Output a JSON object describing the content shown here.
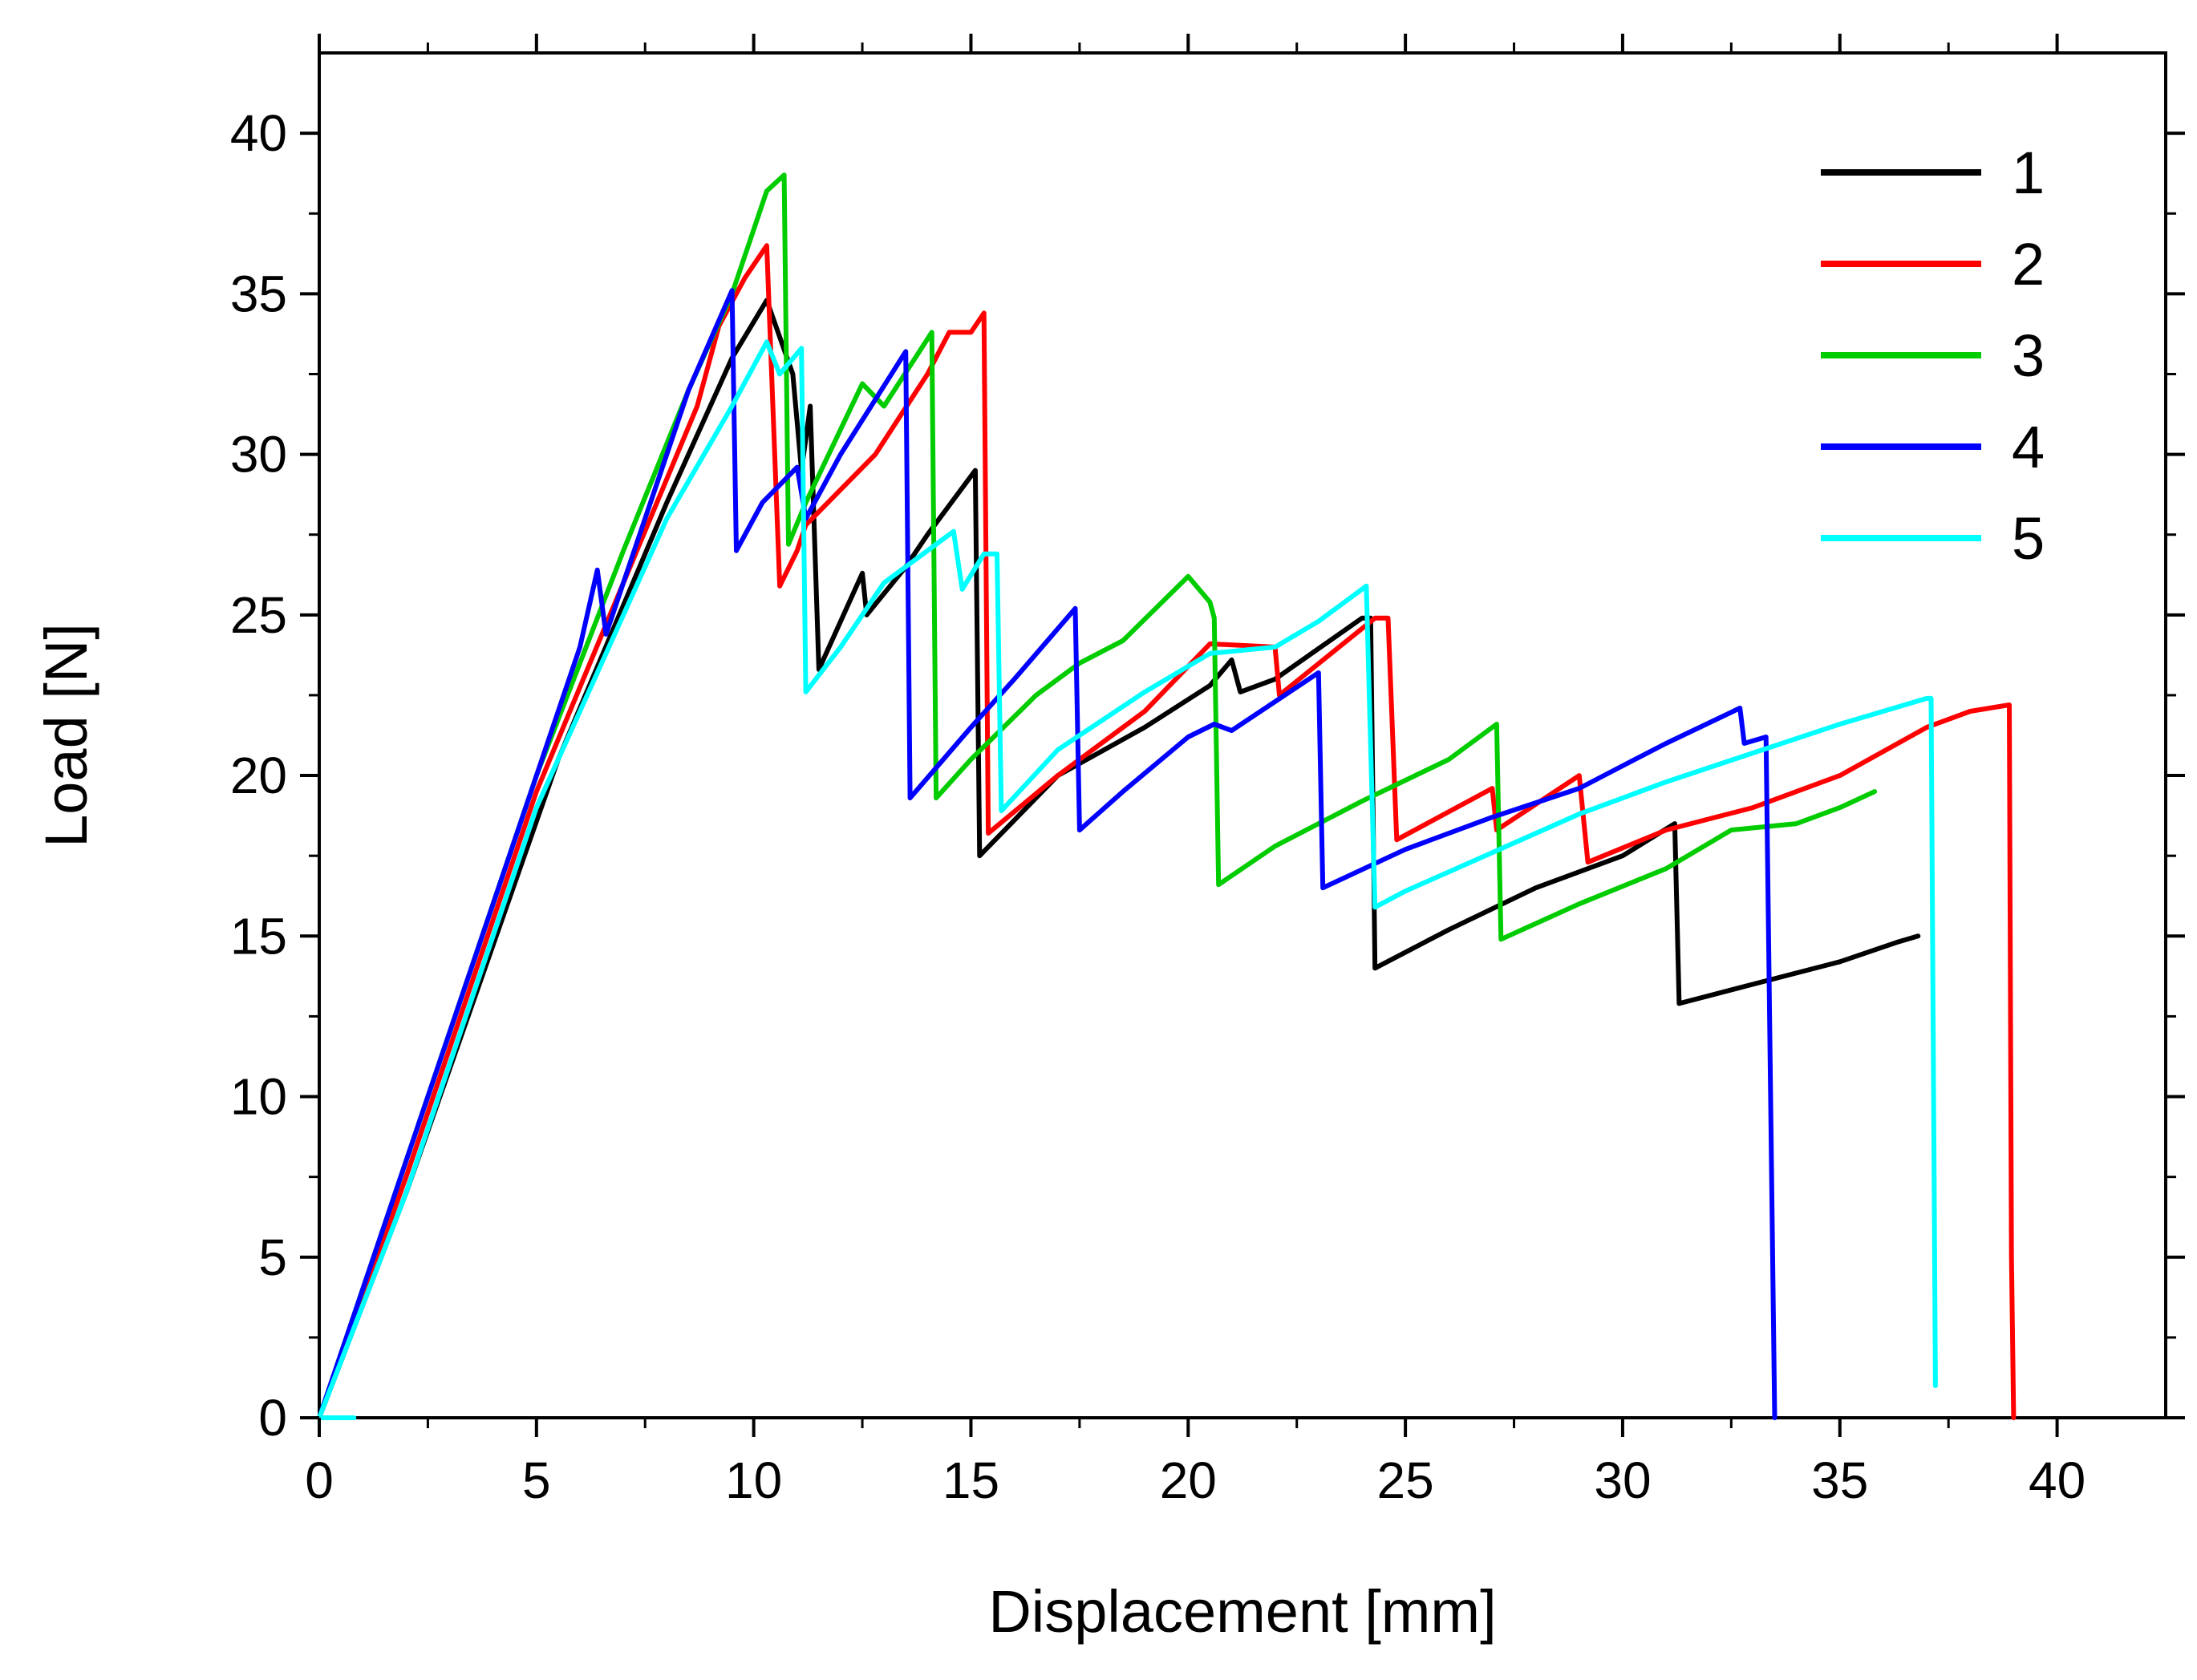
{
  "chart_data": {
    "type": "line",
    "title": "",
    "xlabel": "Displacement [mm]",
    "ylabel": "Load [N]",
    "xlim": [
      0,
      42.5
    ],
    "ylim": [
      0,
      42.5
    ],
    "x_ticks": [
      0,
      5,
      10,
      15,
      20,
      25,
      30,
      35,
      40
    ],
    "y_ticks": [
      0,
      5,
      10,
      15,
      20,
      25,
      30,
      35,
      40
    ],
    "x_tick_labels": [
      "0",
      "5",
      "10",
      "15",
      "20",
      "25",
      "30",
      "35",
      "40"
    ],
    "y_tick_labels": [
      "0",
      "5",
      "10",
      "15",
      "20",
      "25",
      "30",
      "35",
      "40"
    ],
    "grid": false,
    "legend_position": "top-right",
    "series": [
      {
        "name": "1",
        "color": "#000000",
        "points": [
          [
            0,
            0
          ],
          [
            2,
            7
          ],
          [
            5.5,
            20.5
          ],
          [
            8,
            28.5
          ],
          [
            9.5,
            33
          ],
          [
            10.3,
            34.8
          ],
          [
            10.9,
            32.5
          ],
          [
            11.1,
            29.5
          ],
          [
            11.3,
            31.5
          ],
          [
            11.5,
            23.3
          ],
          [
            12.5,
            26.3
          ],
          [
            12.6,
            25
          ],
          [
            13.5,
            26.5
          ],
          [
            14,
            27.5
          ],
          [
            15.1,
            29.5
          ],
          [
            15.2,
            17.5
          ],
          [
            17,
            20
          ],
          [
            19,
            21.5
          ],
          [
            20.5,
            22.8
          ],
          [
            21,
            23.6
          ],
          [
            21.2,
            22.6
          ],
          [
            22,
            23
          ],
          [
            24,
            24.9
          ],
          [
            24.2,
            24.9
          ],
          [
            24.3,
            14
          ],
          [
            26,
            15.2
          ],
          [
            28,
            16.5
          ],
          [
            30,
            17.5
          ],
          [
            31.2,
            18.5
          ],
          [
            31.3,
            12.9
          ],
          [
            33,
            13.5
          ],
          [
            35,
            14.2
          ],
          [
            36.3,
            14.8
          ],
          [
            36.8,
            15
          ]
        ]
      },
      {
        "name": "2",
        "color": "#ff0000",
        "points": [
          [
            0,
            0
          ],
          [
            2,
            7.5
          ],
          [
            5,
            19.5
          ],
          [
            7,
            26
          ],
          [
            8.7,
            31.5
          ],
          [
            9.2,
            34
          ],
          [
            9.8,
            35.5
          ],
          [
            10.3,
            36.5
          ],
          [
            10.6,
            25.9
          ],
          [
            11,
            27
          ],
          [
            11.2,
            27.8
          ],
          [
            12.8,
            30
          ],
          [
            14,
            32.5
          ],
          [
            14.5,
            33.8
          ],
          [
            15,
            33.8
          ],
          [
            15.3,
            34.4
          ],
          [
            15.4,
            18.2
          ],
          [
            17,
            20
          ],
          [
            19,
            22
          ],
          [
            20.5,
            24.1
          ],
          [
            22,
            24
          ],
          [
            22.1,
            22.5
          ],
          [
            24.3,
            24.9
          ],
          [
            24.6,
            24.9
          ],
          [
            24.8,
            18
          ],
          [
            27,
            19.6
          ],
          [
            27.1,
            18.3
          ],
          [
            29,
            20
          ],
          [
            29.2,
            17.3
          ],
          [
            31,
            18.3
          ],
          [
            33,
            19
          ],
          [
            35,
            20
          ],
          [
            37,
            21.5
          ],
          [
            38,
            22
          ],
          [
            38.9,
            22.2
          ],
          [
            38.95,
            5
          ],
          [
            39.0,
            0
          ]
        ]
      },
      {
        "name": "3",
        "color": "#00cc00",
        "points": [
          [
            0,
            0
          ],
          [
            2,
            8
          ],
          [
            5,
            20
          ],
          [
            7,
            27
          ],
          [
            8.5,
            32
          ],
          [
            9.5,
            35
          ],
          [
            10.3,
            38.2
          ],
          [
            10.7,
            38.7
          ],
          [
            10.8,
            27.2
          ],
          [
            11.2,
            28.5
          ],
          [
            12.5,
            32.2
          ],
          [
            13,
            31.5
          ],
          [
            14.1,
            33.8
          ],
          [
            14.2,
            19.3
          ],
          [
            15,
            20.5
          ],
          [
            16.5,
            22.5
          ],
          [
            17.5,
            23.5
          ],
          [
            18.5,
            24.2
          ],
          [
            20,
            26.2
          ],
          [
            20.5,
            25.4
          ],
          [
            20.6,
            24.9
          ],
          [
            20.7,
            16.6
          ],
          [
            22,
            17.8
          ],
          [
            24,
            19.2
          ],
          [
            26,
            20.5
          ],
          [
            27.1,
            21.6
          ],
          [
            27.2,
            14.9
          ],
          [
            29,
            16
          ],
          [
            31,
            17.1
          ],
          [
            32.5,
            18.3
          ],
          [
            34,
            18.5
          ],
          [
            35,
            19
          ],
          [
            35.8,
            19.5
          ]
        ]
      },
      {
        "name": "4",
        "color": "#0000ff",
        "points": [
          [
            0,
            0
          ],
          [
            2,
            8
          ],
          [
            4,
            16
          ],
          [
            6,
            24
          ],
          [
            6.4,
            26.4
          ],
          [
            6.6,
            24.4
          ],
          [
            7.5,
            28
          ],
          [
            8.5,
            32
          ],
          [
            9.5,
            35.1
          ],
          [
            9.6,
            27
          ],
          [
            10.2,
            28.5
          ],
          [
            11,
            29.6
          ],
          [
            11.2,
            28
          ],
          [
            12,
            30
          ],
          [
            13.5,
            33.2
          ],
          [
            13.6,
            19.3
          ],
          [
            15,
            21.5
          ],
          [
            16,
            23
          ],
          [
            17.4,
            25.2
          ],
          [
            17.5,
            18.3
          ],
          [
            18.5,
            19.5
          ],
          [
            20,
            21.2
          ],
          [
            20.6,
            21.6
          ],
          [
            21,
            21.4
          ],
          [
            23,
            23.2
          ],
          [
            23.1,
            16.5
          ],
          [
            25,
            17.7
          ],
          [
            27,
            18.7
          ],
          [
            29,
            19.6
          ],
          [
            30,
            20.3
          ],
          [
            31,
            21
          ],
          [
            32.7,
            22.1
          ],
          [
            32.8,
            21
          ],
          [
            33.3,
            21.2
          ],
          [
            33.5,
            0
          ]
        ]
      },
      {
        "name": "5",
        "color": "#00ffff",
        "points": [
          [
            0.2,
            0
          ],
          [
            0.8,
            0
          ],
          [
            0,
            0
          ],
          [
            2,
            7
          ],
          [
            5,
            19
          ],
          [
            7,
            25
          ],
          [
            8,
            28
          ],
          [
            9.5,
            31.5
          ],
          [
            10.3,
            33.5
          ],
          [
            10.6,
            32.5
          ],
          [
            11.1,
            33.3
          ],
          [
            11.2,
            22.6
          ],
          [
            12,
            24
          ],
          [
            13,
            26
          ],
          [
            14,
            27
          ],
          [
            14.6,
            27.6
          ],
          [
            14.8,
            25.8
          ],
          [
            15.3,
            26.9
          ],
          [
            15.6,
            26.9
          ],
          [
            15.7,
            18.9
          ],
          [
            17,
            20.8
          ],
          [
            19,
            22.6
          ],
          [
            20.5,
            23.8
          ],
          [
            22,
            24
          ],
          [
            23,
            24.8
          ],
          [
            24.1,
            25.9
          ],
          [
            24.3,
            15.9
          ],
          [
            25,
            16.4
          ],
          [
            27,
            17.6
          ],
          [
            29,
            18.8
          ],
          [
            31,
            19.8
          ],
          [
            33,
            20.7
          ],
          [
            35,
            21.6
          ],
          [
            37,
            22.4
          ],
          [
            37.1,
            22.4
          ],
          [
            37.2,
            1
          ]
        ]
      }
    ]
  }
}
